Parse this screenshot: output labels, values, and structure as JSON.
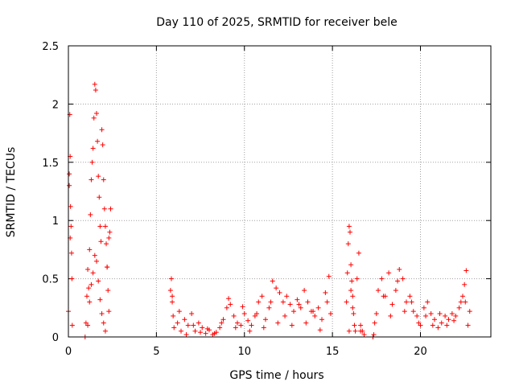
{
  "chart_data": {
    "type": "scatter",
    "title": "Day 110 of 2025, SRMTID for receiver bele",
    "xlabel": "GPS time / hours",
    "ylabel": "SRMTID / TECUs",
    "xlim": [
      0,
      24
    ],
    "ylim": [
      0,
      2.5
    ],
    "x_ticks": [
      0,
      5,
      10,
      15,
      20
    ],
    "x_tick_labels": [
      "0",
      "5",
      "10",
      "15",
      "20"
    ],
    "y_ticks": [
      0,
      0.5,
      1,
      1.5,
      2,
      2.5
    ],
    "y_tick_labels": [
      "0",
      "0.5",
      "1",
      "1.5",
      "2",
      "2.5"
    ],
    "grid": true,
    "marker": "+",
    "color": "#ff0000",
    "series": [
      {
        "name": "SRMTID",
        "x": [
          0.0,
          0.05,
          0.08,
          0.1,
          0.12,
          0.15,
          0.18,
          0.2,
          0.22,
          0.05,
          0.1,
          0.95,
          1.0,
          1.05,
          1.1,
          1.15,
          1.2,
          1.25,
          1.3,
          1.35,
          1.4,
          1.45,
          1.5,
          1.55,
          1.6,
          1.65,
          1.7,
          1.75,
          1.8,
          1.85,
          1.9,
          1.95,
          2.0,
          2.05,
          2.1,
          2.15,
          2.2,
          2.25,
          2.3,
          2.35,
          2.4,
          1.1,
          1.2,
          1.3,
          1.4,
          1.5,
          1.6,
          1.7,
          1.8,
          1.9,
          2.0,
          2.1,
          2.2,
          2.3,
          5.8,
          5.85,
          5.9,
          5.95,
          6.0,
          6.2,
          6.4,
          6.6,
          6.8,
          7.0,
          7.2,
          7.4,
          7.6,
          7.8,
          8.0,
          8.2,
          8.4,
          8.6,
          8.8,
          9.0,
          9.2,
          9.4,
          9.6,
          9.8,
          10.0,
          10.2,
          10.4,
          10.6,
          10.8,
          11.0,
          11.2,
          11.4,
          11.6,
          11.8,
          12.0,
          12.2,
          12.4,
          12.6,
          12.8,
          13.0,
          13.2,
          13.4,
          13.6,
          13.8,
          14.0,
          14.2,
          14.4,
          14.6,
          14.8,
          14.9,
          5.9,
          6.3,
          6.7,
          7.1,
          7.5,
          7.9,
          8.3,
          8.7,
          9.1,
          9.5,
          9.9,
          10.3,
          10.7,
          11.1,
          11.5,
          11.9,
          12.3,
          12.7,
          13.1,
          13.5,
          13.9,
          14.3,
          14.7,
          15.8,
          15.85,
          15.9,
          15.95,
          16.0,
          16.05,
          16.1,
          16.15,
          16.2,
          16.25,
          16.3,
          16.4,
          16.5,
          16.6,
          16.7,
          16.8,
          17.3,
          17.4,
          17.6,
          17.8,
          18.0,
          18.2,
          18.4,
          18.6,
          18.8,
          19.0,
          19.2,
          19.4,
          19.6,
          19.8,
          20.0,
          20.2,
          20.4,
          20.6,
          20.8,
          21.0,
          21.2,
          21.4,
          21.6,
          21.8,
          22.0,
          22.2,
          22.4,
          22.6,
          22.8,
          17.5,
          17.9,
          18.3,
          18.7,
          19.1,
          19.5,
          19.9,
          20.3,
          20.7,
          21.1,
          21.5,
          21.9,
          22.3,
          22.7,
          15.95,
          16.05,
          16.15,
          16.6,
          17.35,
          22.5,
          22.55
        ],
        "y": [
          0.22,
          1.4,
          1.91,
          1.55,
          1.12,
          0.95,
          0.72,
          0.5,
          0.1,
          1.3,
          0.85,
          0.0,
          0.12,
          0.35,
          0.58,
          0.42,
          0.75,
          1.05,
          1.35,
          1.5,
          1.62,
          1.88,
          2.17,
          2.12,
          1.92,
          1.68,
          1.38,
          1.2,
          0.95,
          0.82,
          1.78,
          1.65,
          1.35,
          1.1,
          0.95,
          0.8,
          0.6,
          0.4,
          0.22,
          0.9,
          1.1,
          0.1,
          0.3,
          0.45,
          0.55,
          0.7,
          0.65,
          0.48,
          0.32,
          0.2,
          0.12,
          0.05,
          0.6,
          0.85,
          0.4,
          0.5,
          0.3,
          0.18,
          0.08,
          0.12,
          0.05,
          0.15,
          0.1,
          0.2,
          0.05,
          0.12,
          0.08,
          0.03,
          0.06,
          0.02,
          0.04,
          0.08,
          0.15,
          0.25,
          0.28,
          0.18,
          0.12,
          0.1,
          0.2,
          0.14,
          0.1,
          0.18,
          0.3,
          0.35,
          0.15,
          0.25,
          0.48,
          0.42,
          0.38,
          0.3,
          0.35,
          0.28,
          0.22,
          0.32,
          0.25,
          0.4,
          0.3,
          0.22,
          0.18,
          0.25,
          0.15,
          0.38,
          0.52,
          0.2,
          0.35,
          0.22,
          0.02,
          0.1,
          0.04,
          0.07,
          0.03,
          0.12,
          0.33,
          0.08,
          0.26,
          0.05,
          0.2,
          0.08,
          0.3,
          0.12,
          0.18,
          0.1,
          0.28,
          0.12,
          0.22,
          0.06,
          0.3,
          0.3,
          0.55,
          0.8,
          0.95,
          0.9,
          0.62,
          0.48,
          0.35,
          0.2,
          0.1,
          0.05,
          0.5,
          0.72,
          0.1,
          0.05,
          0.02,
          0.0,
          0.12,
          0.4,
          0.5,
          0.35,
          0.55,
          0.28,
          0.4,
          0.58,
          0.5,
          0.3,
          0.35,
          0.22,
          0.18,
          0.1,
          0.25,
          0.3,
          0.2,
          0.15,
          0.08,
          0.12,
          0.18,
          0.15,
          0.2,
          0.18,
          0.25,
          0.35,
          0.57,
          0.22,
          0.2,
          0.35,
          0.18,
          0.48,
          0.22,
          0.3,
          0.12,
          0.18,
          0.1,
          0.2,
          0.1,
          0.14,
          0.3,
          0.1,
          0.05,
          0.4,
          0.25,
          0.05,
          0.02,
          0.45,
          0.3
        ]
      }
    ]
  }
}
